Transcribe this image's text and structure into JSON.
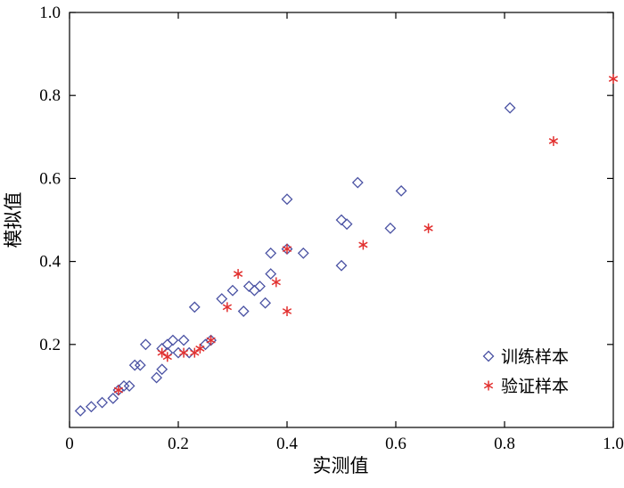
{
  "chart_data": {
    "type": "scatter",
    "title": "",
    "xlabel": "实测值",
    "ylabel": "模拟值",
    "xlim": [
      0,
      1.0
    ],
    "ylim": [
      0,
      1.0
    ],
    "x_ticks": [
      0,
      0.2,
      0.4,
      0.6,
      0.8,
      1.0
    ],
    "x_tick_labels": [
      "0",
      "0.2",
      "0.4",
      "0.6",
      "0.8",
      "1.0"
    ],
    "y_ticks": [
      0.2,
      0.4,
      0.6,
      0.8,
      1.0
    ],
    "y_tick_labels": [
      "0.2",
      "0.4",
      "0.6",
      "0.8",
      "1.0"
    ],
    "grid": false,
    "legend_position": "lower right",
    "axis_color": "#000000",
    "series": [
      {
        "name": "训练样本",
        "marker": "open-diamond",
        "color": "#4a52a3",
        "points": [
          [
            0.02,
            0.04
          ],
          [
            0.04,
            0.05
          ],
          [
            0.06,
            0.06
          ],
          [
            0.08,
            0.07
          ],
          [
            0.09,
            0.09
          ],
          [
            0.1,
            0.1
          ],
          [
            0.11,
            0.1
          ],
          [
            0.12,
            0.15
          ],
          [
            0.13,
            0.15
          ],
          [
            0.14,
            0.2
          ],
          [
            0.16,
            0.12
          ],
          [
            0.17,
            0.14
          ],
          [
            0.17,
            0.19
          ],
          [
            0.18,
            0.18
          ],
          [
            0.18,
            0.2
          ],
          [
            0.19,
            0.21
          ],
          [
            0.2,
            0.18
          ],
          [
            0.21,
            0.21
          ],
          [
            0.22,
            0.18
          ],
          [
            0.23,
            0.29
          ],
          [
            0.25,
            0.2
          ],
          [
            0.26,
            0.21
          ],
          [
            0.28,
            0.31
          ],
          [
            0.3,
            0.33
          ],
          [
            0.32,
            0.28
          ],
          [
            0.33,
            0.34
          ],
          [
            0.34,
            0.33
          ],
          [
            0.35,
            0.34
          ],
          [
            0.36,
            0.3
          ],
          [
            0.37,
            0.37
          ],
          [
            0.37,
            0.42
          ],
          [
            0.4,
            0.43
          ],
          [
            0.4,
            0.55
          ],
          [
            0.43,
            0.42
          ],
          [
            0.5,
            0.39
          ],
          [
            0.5,
            0.5
          ],
          [
            0.51,
            0.49
          ],
          [
            0.53,
            0.59
          ],
          [
            0.59,
            0.48
          ],
          [
            0.61,
            0.57
          ],
          [
            0.81,
            0.77
          ]
        ]
      },
      {
        "name": "验证样本",
        "marker": "asterisk",
        "color": "#e2302f",
        "points": [
          [
            0.09,
            0.09
          ],
          [
            0.17,
            0.18
          ],
          [
            0.18,
            0.17
          ],
          [
            0.21,
            0.18
          ],
          [
            0.23,
            0.18
          ],
          [
            0.24,
            0.19
          ],
          [
            0.26,
            0.21
          ],
          [
            0.29,
            0.29
          ],
          [
            0.31,
            0.37
          ],
          [
            0.38,
            0.35
          ],
          [
            0.4,
            0.28
          ],
          [
            0.4,
            0.43
          ],
          [
            0.54,
            0.44
          ],
          [
            0.66,
            0.48
          ],
          [
            0.89,
            0.69
          ],
          [
            1.0,
            0.84
          ]
        ]
      }
    ]
  }
}
